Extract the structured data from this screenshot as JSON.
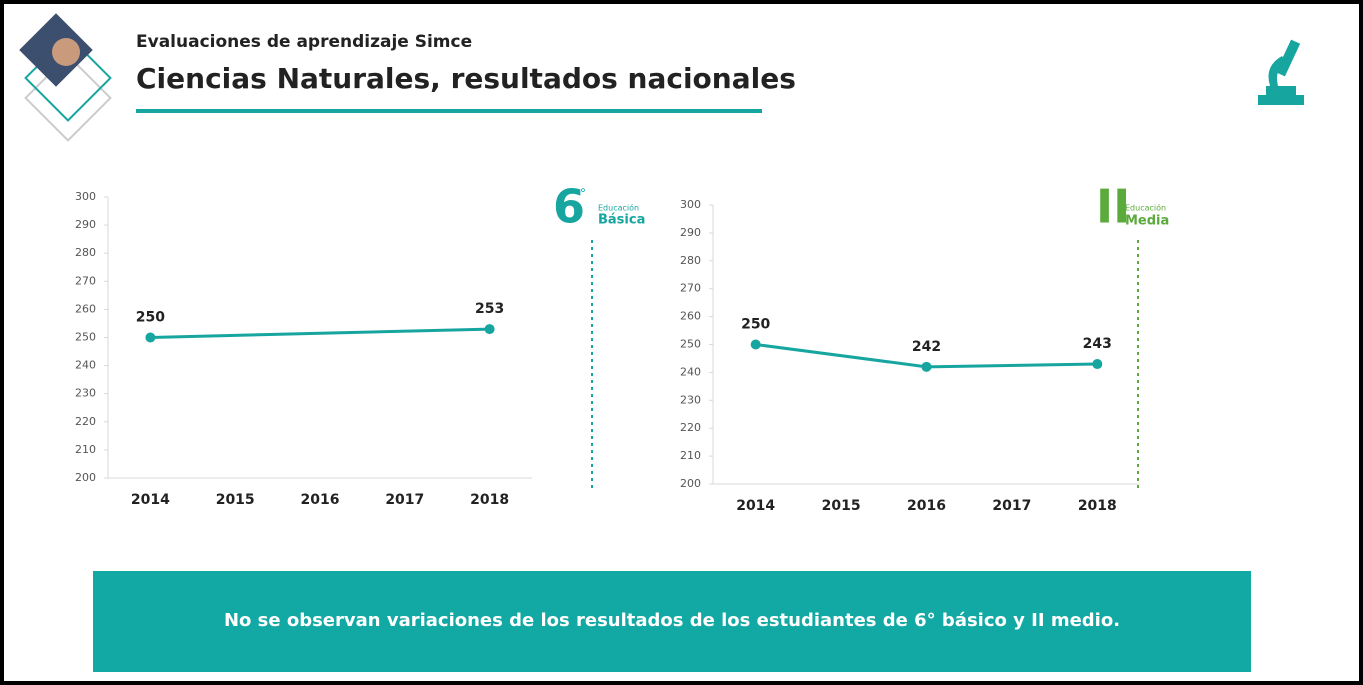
{
  "header": {
    "subtitle": "Evaluaciones de aprendizaje Simce",
    "title": "Ciencias Naturales, resultados nacionales"
  },
  "badges": [
    {
      "number": "6",
      "degree": "°",
      "level": "Educación",
      "name": "Básica"
    },
    {
      "number": "II",
      "level": "Educación",
      "name": "Media"
    }
  ],
  "chart_data": [
    {
      "type": "line",
      "x": [
        2014,
        2018
      ],
      "xlim": [
        2013.5,
        2018.5
      ],
      "xticks": [
        2014,
        2015,
        2016,
        2017,
        2018
      ],
      "values": [
        250,
        253
      ],
      "color": "#17a5a0",
      "ylim": [
        200,
        300
      ],
      "yticks": [
        200,
        210,
        220,
        230,
        240,
        250,
        260,
        270,
        280,
        290,
        300
      ]
    },
    {
      "type": "line",
      "x": [
        2014,
        2016,
        2018
      ],
      "xlim": [
        2013.5,
        2018.5
      ],
      "xticks": [
        2014,
        2015,
        2016,
        2017,
        2018
      ],
      "values": [
        250,
        242,
        243
      ],
      "color": "#17a5a0",
      "ylim": [
        200,
        300
      ],
      "yticks": [
        200,
        210,
        220,
        230,
        240,
        250,
        260,
        270,
        280,
        290,
        300
      ]
    }
  ],
  "footer": "No se observan variaciones de los resultados de los estudiantes de 6° básico y II medio."
}
